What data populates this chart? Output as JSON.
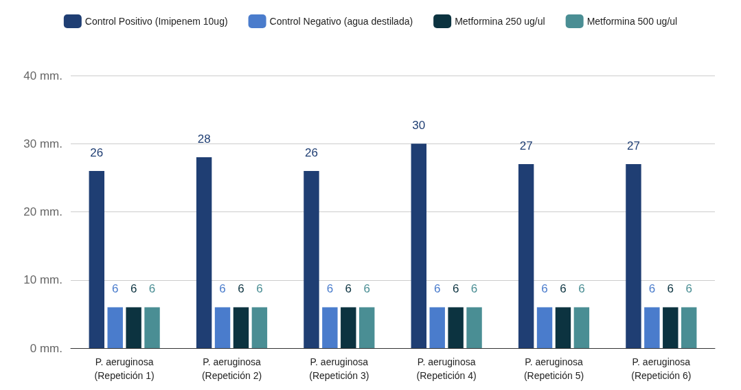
{
  "chart_data": {
    "type": "bar",
    "categories": [
      "P. aeruginosa\n(Repetición 1)",
      "P. aeruginosa\n(Repetición 2)",
      "P. aeruginosa\n(Repetición 3)",
      "P. aeruginosa\n(Repetición 4)",
      "P. aeruginosa\n(Repetición 5)",
      "P. aeruginosa\n(Repetición 6)"
    ],
    "series": [
      {
        "name": "Control Positivo (Imipenem 10ug)",
        "color": "#1f3e73",
        "values": [
          26,
          28,
          26,
          30,
          27,
          27
        ]
      },
      {
        "name": "Control Negativo (agua destilada)",
        "color": "#4a7ccc",
        "values": [
          6,
          6,
          6,
          6,
          6,
          6
        ]
      },
      {
        "name": "Metformina 250 ug/ul",
        "color": "#0c3340",
        "values": [
          6,
          6,
          6,
          6,
          6,
          6
        ]
      },
      {
        "name": "Metformina 500 ug/ul",
        "color": "#4a8e94",
        "values": [
          6,
          6,
          6,
          6,
          6,
          6
        ]
      }
    ],
    "ylim": [
      0,
      40
    ],
    "yticks": [
      {
        "value": 0,
        "label": "0 mm."
      },
      {
        "value": 10,
        "label": "10 mm."
      },
      {
        "value": 20,
        "label": "20 mm."
      },
      {
        "value": 30,
        "label": "30 mm."
      },
      {
        "value": 40,
        "label": "40 mm."
      }
    ],
    "grid": "y",
    "legend": "top",
    "data_labels": true
  }
}
